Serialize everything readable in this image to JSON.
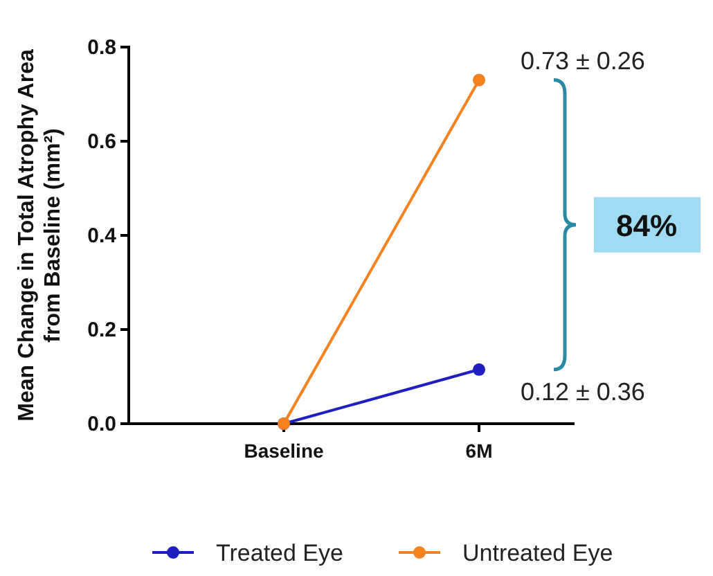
{
  "chart_data": {
    "type": "line",
    "ylabel": "Mean Change in Total Atrophy Area from Baseline (mm²)",
    "categories": [
      "Baseline",
      "6M"
    ],
    "series": [
      {
        "name": "Treated Eye",
        "color": "#1f1fbf",
        "values": [
          0,
          0.115
        ],
        "value_labels": [
          null,
          "0.12 ± 0.36"
        ]
      },
      {
        "name": "Untreated Eye",
        "color": "#f5821f",
        "values": [
          0,
          0.73
        ],
        "value_labels": [
          null,
          "0.73 ± 0.26"
        ]
      }
    ],
    "ylim": [
      0,
      0.8
    ],
    "yticks": [
      {
        "value": 0,
        "label": "0.0"
      },
      {
        "value": 0.2,
        "label": "0.2"
      },
      {
        "value": 0.4,
        "label": "0.4"
      },
      {
        "value": 0.6,
        "label": "0.6"
      },
      {
        "value": 0.8,
        "label": "0.8"
      }
    ],
    "annotations": [
      "84%"
    ],
    "marker": "circle",
    "line_style": "solid",
    "legend": "bottom",
    "grid": false
  }
}
